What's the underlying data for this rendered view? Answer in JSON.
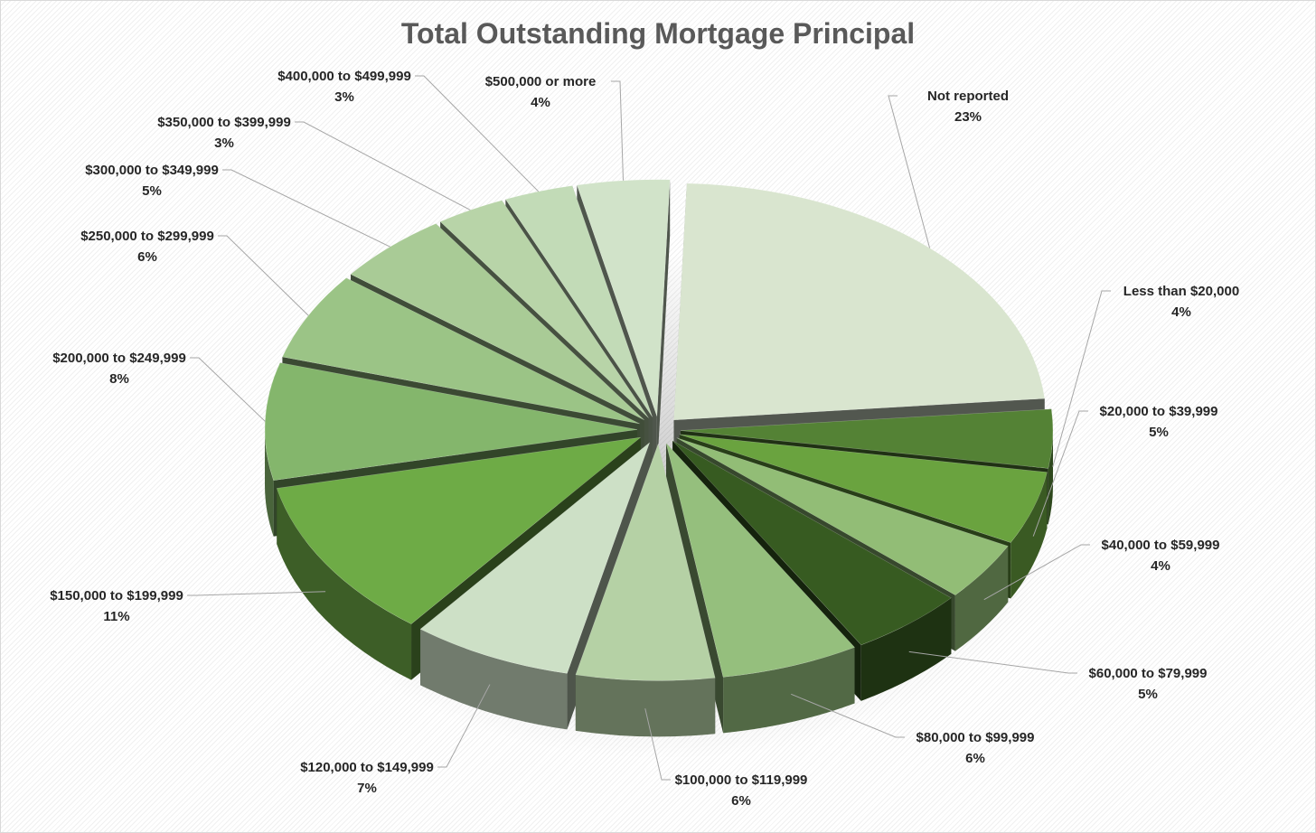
{
  "chart_data": {
    "type": "pie",
    "title": "Total Outstanding Mortgage Principal",
    "slices": [
      {
        "label": "Not reported",
        "value": 23,
        "display": "23%",
        "color": "#d9e5cf"
      },
      {
        "label": "Less than $20,000",
        "value": 4,
        "display": "4%",
        "color": "#548235"
      },
      {
        "label": "$20,000 to $39,999",
        "value": 5,
        "display": "5%",
        "color": "#6aa33f"
      },
      {
        "label": "$40,000 to $59,999",
        "value": 4,
        "display": "4%",
        "color": "#92bd76"
      },
      {
        "label": "$60,000 to $79,999",
        "value": 5,
        "display": "5%",
        "color": "#375b21"
      },
      {
        "label": "$80,000 to $99,999",
        "value": 6,
        "display": "6%",
        "color": "#95bf7d"
      },
      {
        "label": "$100,000 to $119,999",
        "value": 6,
        "display": "6%",
        "color": "#b5d1a5"
      },
      {
        "label": "$120,000 to $149,999",
        "value": 7,
        "display": "7%",
        "color": "#cde0c6"
      },
      {
        "label": "$150,000 to $199,999",
        "value": 11,
        "display": "11%",
        "color": "#6eab46"
      },
      {
        "label": "$200,000 to $249,999",
        "value": 8,
        "display": "8%",
        "color": "#84b66c"
      },
      {
        "label": "$250,000 to $299,999",
        "value": 6,
        "display": "6%",
        "color": "#9bc486"
      },
      {
        "label": "$300,000 to $349,999",
        "value": 5,
        "display": "5%",
        "color": "#a9cb96"
      },
      {
        "label": "$350,000 to $399,999",
        "value": 3,
        "display": "3%",
        "color": "#b8d4a8"
      },
      {
        "label": "$400,000 to $499,999",
        "value": 3,
        "display": "3%",
        "color": "#c2dbb7"
      },
      {
        "label": "$500,000 or more",
        "value": 4,
        "display": "4%",
        "color": "#d1e3c9"
      }
    ]
  }
}
